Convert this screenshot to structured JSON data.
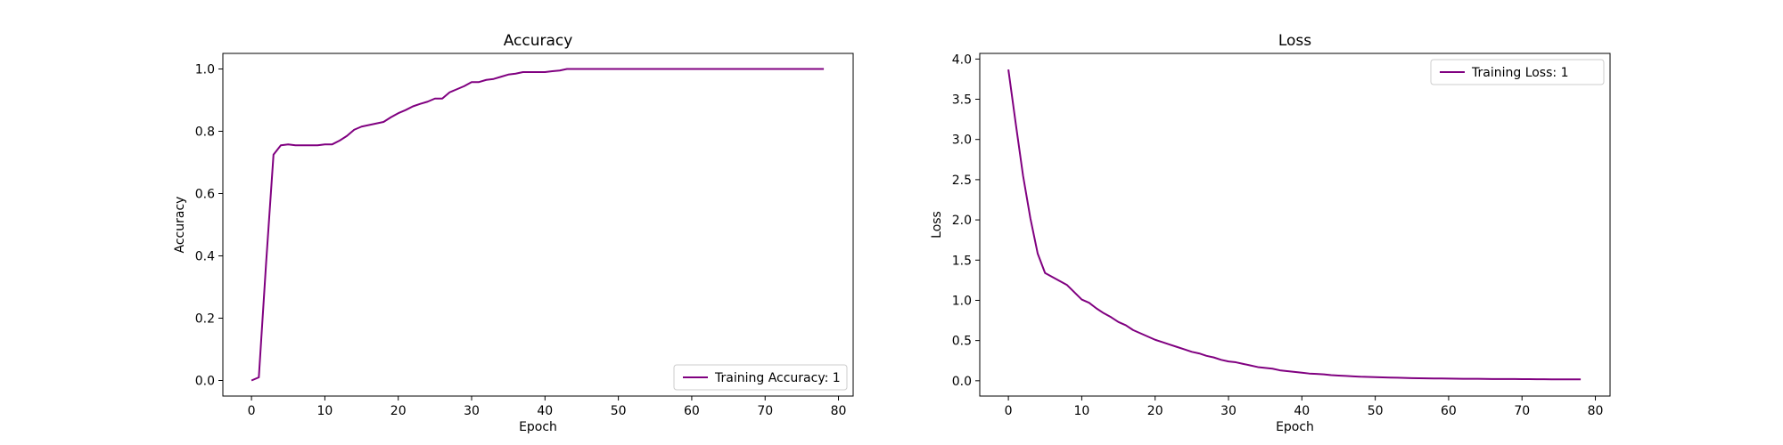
{
  "chart_data": [
    {
      "type": "line",
      "title": "Accuracy",
      "xlabel": "Epoch",
      "ylabel": "Accuracy",
      "xlim": [
        -3.9,
        82
      ],
      "ylim": [
        -0.05,
        1.05
      ],
      "xticks": [
        0,
        10,
        20,
        30,
        40,
        50,
        60,
        70,
        80
      ],
      "yticks": [
        0.0,
        0.2,
        0.4,
        0.6,
        0.8,
        1.0
      ],
      "ytick_decimals": 1,
      "legend_position": "lower-right",
      "grid": false,
      "color": "#800080",
      "series": [
        {
          "name": "Training Accuracy: 1",
          "x": [
            0,
            1,
            2,
            3,
            4,
            5,
            6,
            7,
            8,
            9,
            10,
            11,
            12,
            13,
            14,
            15,
            16,
            17,
            18,
            19,
            20,
            21,
            22,
            23,
            24,
            25,
            26,
            27,
            28,
            29,
            30,
            31,
            32,
            33,
            34,
            35,
            36,
            37,
            38,
            39,
            40,
            41,
            42,
            43,
            44,
            45,
            46,
            47,
            48,
            49,
            50,
            51,
            52,
            53,
            54,
            55,
            56,
            57,
            58,
            59,
            60,
            61,
            62,
            63,
            64,
            65,
            66,
            67,
            68,
            69,
            70,
            71,
            72,
            73,
            74,
            75,
            76,
            77,
            78
          ],
          "y": [
            0.0,
            0.01,
            0.38,
            0.725,
            0.755,
            0.758,
            0.755,
            0.755,
            0.755,
            0.755,
            0.758,
            0.758,
            0.77,
            0.785,
            0.805,
            0.815,
            0.82,
            0.825,
            0.83,
            0.845,
            0.858,
            0.868,
            0.88,
            0.888,
            0.895,
            0.905,
            0.905,
            0.925,
            0.935,
            0.945,
            0.958,
            0.958,
            0.965,
            0.968,
            0.975,
            0.982,
            0.985,
            0.99,
            0.99,
            0.99,
            0.99,
            0.993,
            0.995,
            1.0,
            1.0,
            1.0,
            1.0,
            1.0,
            1.0,
            1.0,
            1.0,
            1.0,
            1.0,
            1.0,
            1.0,
            1.0,
            1.0,
            1.0,
            1.0,
            1.0,
            1.0,
            1.0,
            1.0,
            1.0,
            1.0,
            1.0,
            1.0,
            1.0,
            1.0,
            1.0,
            1.0,
            1.0,
            1.0,
            1.0,
            1.0,
            1.0,
            1.0,
            1.0,
            1.0
          ]
        }
      ]
    },
    {
      "type": "line",
      "title": "Loss",
      "xlabel": "Epoch",
      "ylabel": "Loss",
      "xlim": [
        -3.9,
        82
      ],
      "ylim": [
        -0.19,
        4.07
      ],
      "xticks": [
        0,
        10,
        20,
        30,
        40,
        50,
        60,
        70,
        80
      ],
      "yticks": [
        0.0,
        0.5,
        1.0,
        1.5,
        2.0,
        2.5,
        3.0,
        3.5,
        4.0
      ],
      "ytick_decimals": 1,
      "legend_position": "upper-right",
      "grid": false,
      "color": "#800080",
      "series": [
        {
          "name": "Training Loss: 1",
          "x": [
            0,
            1,
            2,
            3,
            4,
            5,
            6,
            7,
            8,
            9,
            10,
            11,
            12,
            13,
            14,
            15,
            16,
            17,
            18,
            19,
            20,
            21,
            22,
            23,
            24,
            25,
            26,
            27,
            28,
            29,
            30,
            31,
            32,
            33,
            34,
            35,
            36,
            37,
            38,
            39,
            40,
            41,
            42,
            43,
            44,
            45,
            46,
            47,
            48,
            49,
            50,
            51,
            52,
            53,
            54,
            55,
            56,
            57,
            58,
            59,
            60,
            61,
            62,
            63,
            64,
            65,
            66,
            67,
            68,
            69,
            70,
            71,
            72,
            73,
            74,
            75,
            76,
            77,
            78
          ],
          "y": [
            3.87,
            3.2,
            2.55,
            2.02,
            1.58,
            1.34,
            1.29,
            1.24,
            1.19,
            1.1,
            1.01,
            0.97,
            0.9,
            0.84,
            0.79,
            0.73,
            0.69,
            0.63,
            0.59,
            0.55,
            0.51,
            0.48,
            0.45,
            0.42,
            0.39,
            0.36,
            0.34,
            0.31,
            0.29,
            0.26,
            0.24,
            0.23,
            0.21,
            0.19,
            0.17,
            0.16,
            0.15,
            0.13,
            0.12,
            0.11,
            0.1,
            0.09,
            0.085,
            0.08,
            0.07,
            0.065,
            0.06,
            0.055,
            0.05,
            0.048,
            0.045,
            0.042,
            0.04,
            0.038,
            0.035,
            0.033,
            0.032,
            0.03,
            0.029,
            0.028,
            0.027,
            0.026,
            0.025,
            0.025,
            0.024,
            0.023,
            0.022,
            0.022,
            0.021,
            0.021,
            0.02,
            0.02,
            0.019,
            0.019,
            0.018,
            0.018,
            0.018,
            0.017,
            0.017
          ]
        }
      ]
    }
  ]
}
